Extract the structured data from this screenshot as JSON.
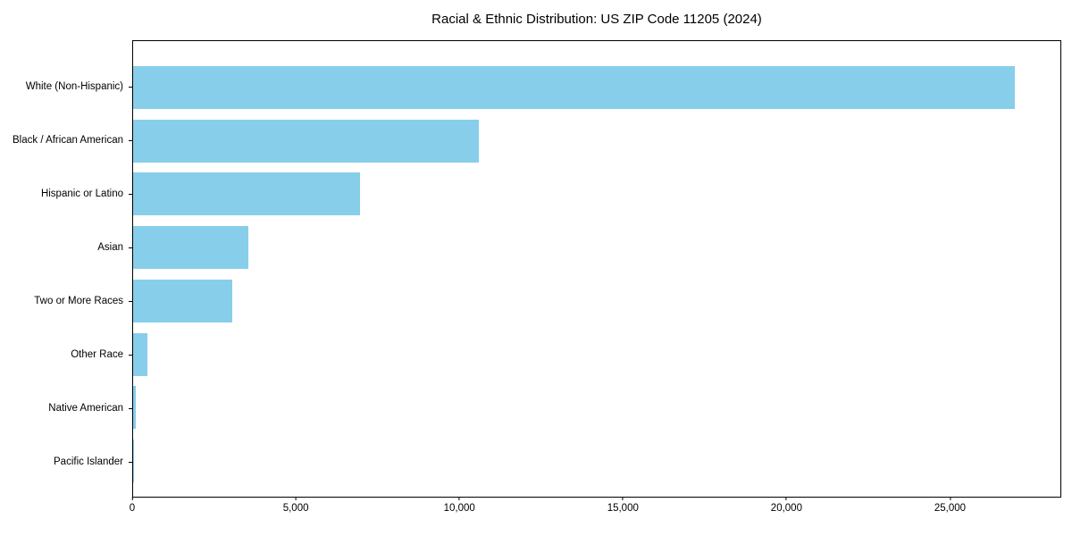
{
  "page": {
    "background": "#ffffff"
  },
  "chart_data": {
    "type": "bar",
    "orientation": "horizontal",
    "title": "Racial & Ethnic Distribution: US ZIP Code 11205 (2024)",
    "categories": [
      "White (Non-Hispanic)",
      "Black / African American",
      "Hispanic or Latino",
      "Asian",
      "Two or More Races",
      "Other Race",
      "Native American",
      "Pacific Islander"
    ],
    "values": [
      27000,
      10600,
      6950,
      3520,
      3040,
      450,
      70,
      25
    ],
    "xlabel": "",
    "ylabel": "",
    "xticks": [
      0,
      5000,
      10000,
      15000,
      20000,
      25000
    ],
    "xtick_labels": [
      "0",
      "5,000",
      "10,000",
      "15,000",
      "20,000",
      "25,000"
    ],
    "xlim": [
      0,
      28400
    ],
    "bar_color": "#87CEEB",
    "frame_color": "#000000",
    "grid": false,
    "legend_position": "none"
  }
}
